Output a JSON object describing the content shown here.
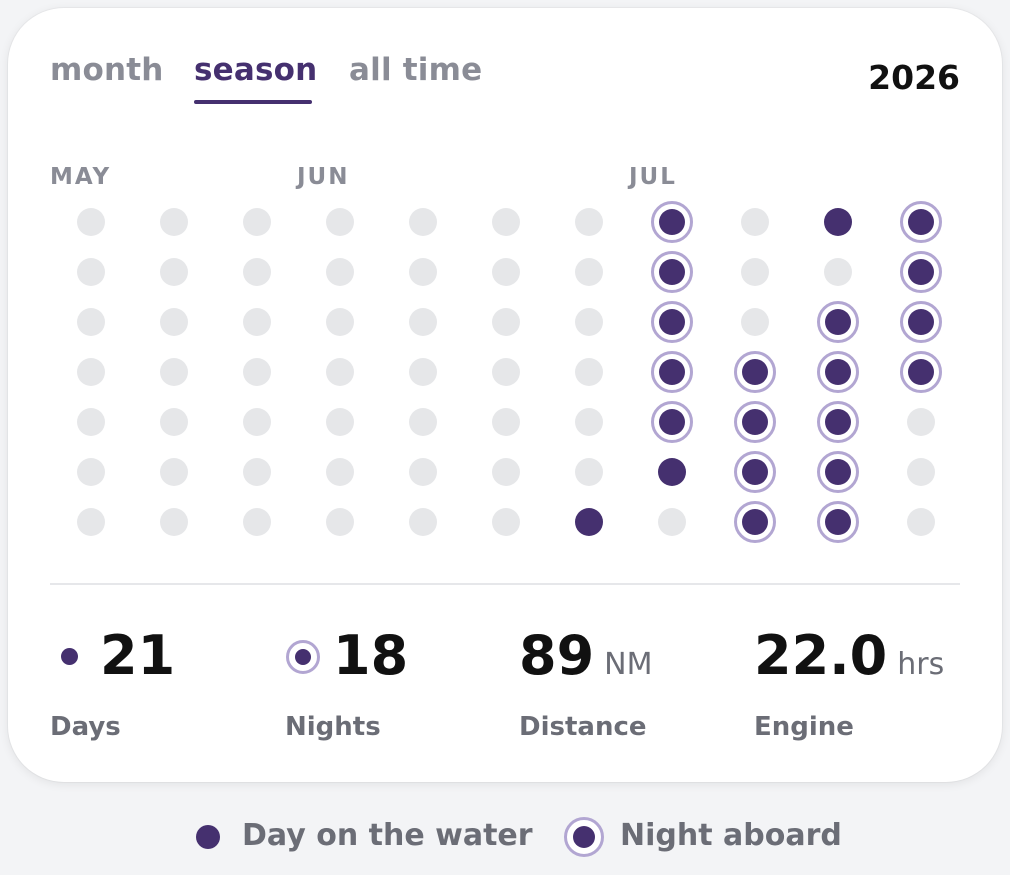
{
  "tabs": [
    {
      "label": "month",
      "active": false
    },
    {
      "label": "season",
      "active": true
    },
    {
      "label": "all time",
      "active": false
    }
  ],
  "year": "2026",
  "months": [
    "MAY",
    "JUN",
    "JUL"
  ],
  "grid": {
    "columns": [
      [
        "empty",
        "empty",
        "empty",
        "empty",
        "empty",
        "empty",
        "empty"
      ],
      [
        "empty",
        "empty",
        "empty",
        "empty",
        "empty",
        "empty",
        "empty"
      ],
      [
        "empty",
        "empty",
        "empty",
        "empty",
        "empty",
        "empty",
        "empty"
      ],
      [
        "empty",
        "empty",
        "empty",
        "empty",
        "empty",
        "empty",
        "empty"
      ],
      [
        "empty",
        "empty",
        "empty",
        "empty",
        "empty",
        "empty",
        "empty"
      ],
      [
        "empty",
        "empty",
        "empty",
        "empty",
        "empty",
        "empty",
        "empty"
      ],
      [
        "empty",
        "empty",
        "empty",
        "empty",
        "empty",
        "empty",
        "day"
      ],
      [
        "night",
        "night",
        "night",
        "night",
        "night",
        "day",
        "empty"
      ],
      [
        "empty",
        "empty",
        "empty",
        "night",
        "night",
        "night",
        "night"
      ],
      [
        "day",
        "empty",
        "night",
        "night",
        "night",
        "night",
        "night"
      ],
      [
        "night",
        "night",
        "night",
        "night",
        "empty",
        "empty",
        "empty"
      ]
    ]
  },
  "stats": {
    "days": {
      "value": "21",
      "label": "Days"
    },
    "nights": {
      "value": "18",
      "label": "Nights"
    },
    "distance": {
      "value": "89",
      "unit": "NM",
      "label": "Distance"
    },
    "engine": {
      "value": "22.0",
      "unit": "hrs",
      "label": "Engine"
    }
  },
  "legend": {
    "day": "Day on the water",
    "night": "Night aboard"
  },
  "colors": {
    "accent": "#45306f",
    "ring": "#b2a6d2",
    "empty_dot": "#e6e7e9"
  }
}
